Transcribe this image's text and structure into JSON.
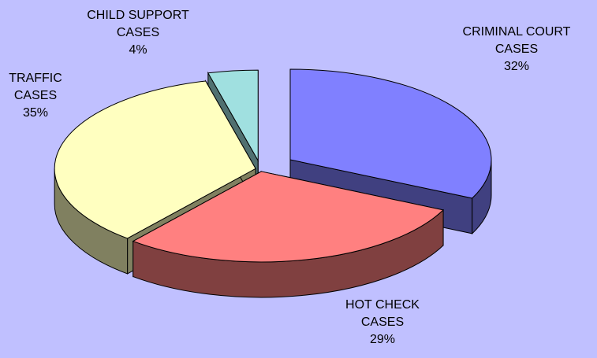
{
  "chart_data": {
    "type": "pie3d",
    "categories": [
      "CRIMINAL COURT CASES",
      "HOT CHECK CASES",
      "TRAFFIC CASES",
      "CHILD SUPPORT CASES"
    ],
    "values": [
      32,
      29,
      35,
      4
    ],
    "value_labels": [
      "32%",
      "29%",
      "35%",
      "4%"
    ],
    "colors": [
      "#8080ff",
      "#ff8080",
      "#ffffc0",
      "#a0e0e0"
    ],
    "background": "#c0c0ff"
  }
}
